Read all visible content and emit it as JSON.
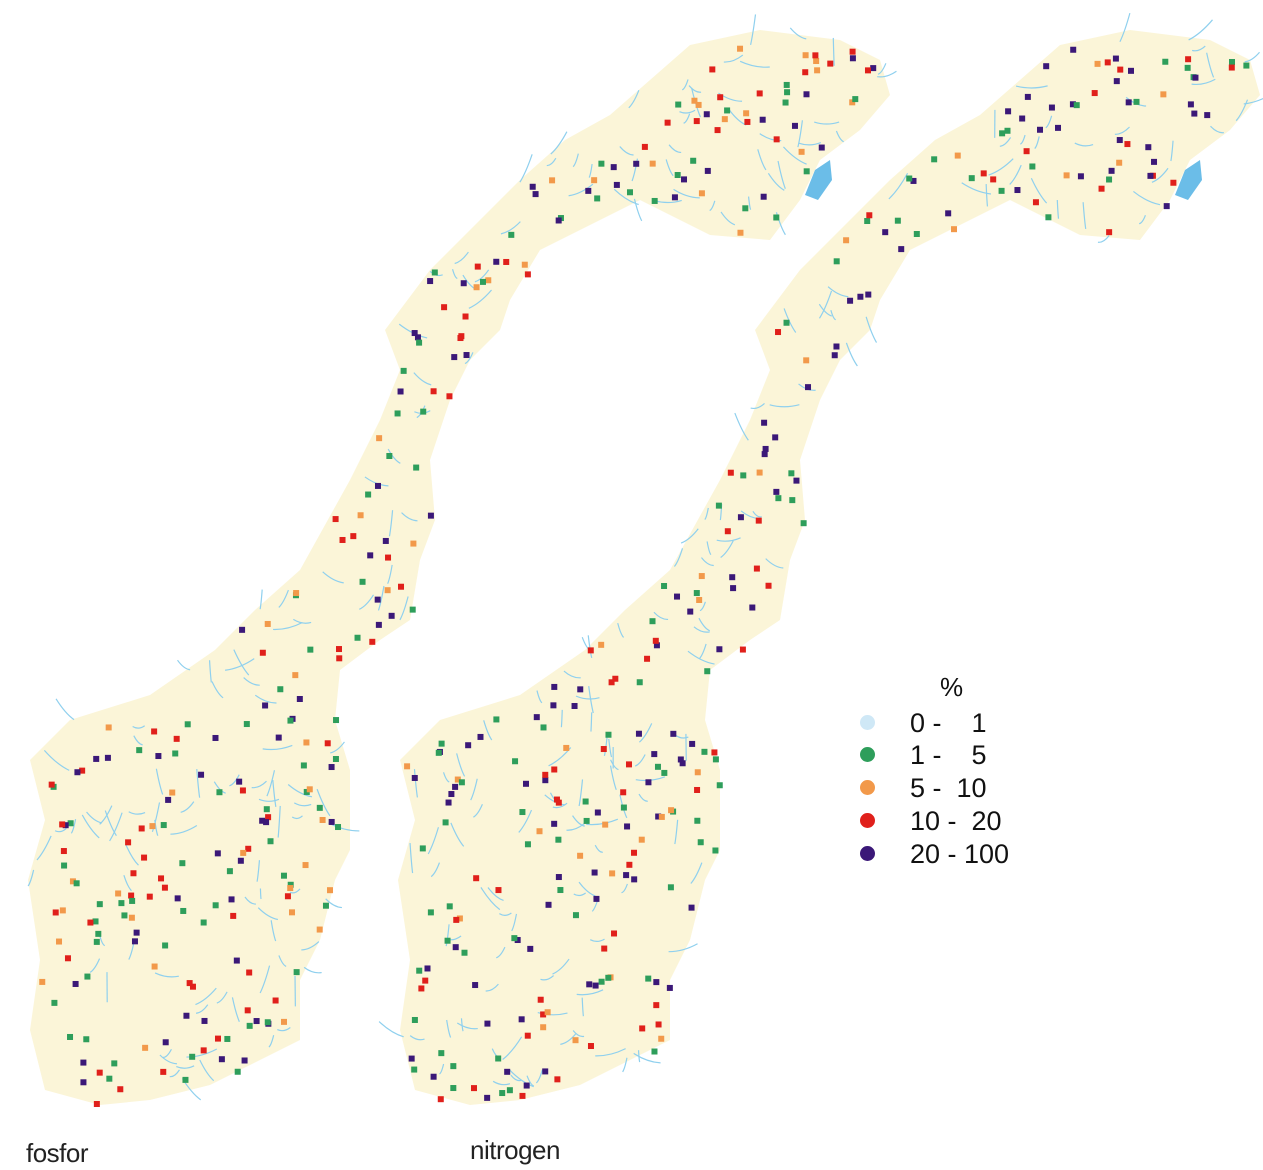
{
  "maps": [
    {
      "label": "fosfor",
      "name": "map-fosfor"
    },
    {
      "label": "nitrogen",
      "name": "map-nitrogen"
    }
  ],
  "legend": {
    "title": "%",
    "classes": [
      {
        "label": "0 -    1",
        "color": "#cfe8f6"
      },
      {
        "label": "1 -    5",
        "color": "#2e9e5b"
      },
      {
        "label": "5 -  10",
        "color": "#f2994a"
      },
      {
        "label": "10 -  20",
        "color": "#e0201b"
      },
      {
        "label": "20 - 100",
        "color": "#3b1878"
      }
    ]
  },
  "colors": {
    "land": "#fbf5d8",
    "river": "#8fd0ee",
    "lake": "#6bbde8"
  }
}
